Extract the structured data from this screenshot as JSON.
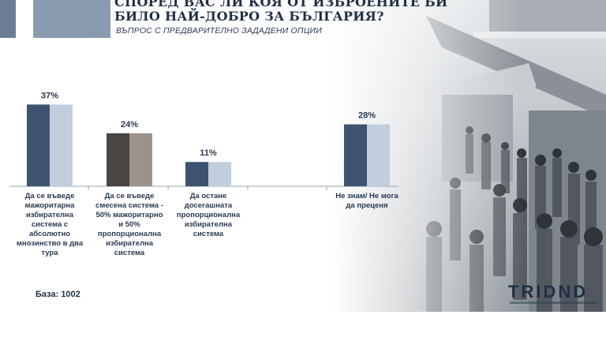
{
  "header": {
    "title_line1": "СПОРЕД ВАС ЛИ КОЯ ОТ ИЗБРОЕНИТЕ БИ",
    "title_line2": "БИЛО НАЙ-ДОБРО ЗА БЪЛГАРИЯ?",
    "subtitle": "ВЪПРОС С ПРЕДВАРИТЕЛНО ЗАДАДЕНИ ОПЦИИ"
  },
  "footer": {
    "base": "База: 1002",
    "logo": "TRIDND"
  },
  "colors": {
    "navy": "#3d5370",
    "navy_light": "#c2cedd",
    "dark": "#4a4543",
    "dark_light": "#9c948c"
  },
  "chart_data": {
    "type": "bar",
    "categories": [
      [
        "Да се въведе",
        "мажоритарна",
        "избирателна",
        "система с",
        "абсолютно",
        "мнозинство в два",
        "тура"
      ],
      [
        "Да се въведе",
        "смесена система -",
        "50% мажоритарно",
        "и 50%",
        "пропорционална",
        "избирателна",
        "система"
      ],
      [
        "Да остане",
        "досегашната",
        "пропорционална",
        "избирателна",
        "система"
      ],
      [
        "Не знам/ Не мога",
        "да преценя"
      ]
    ],
    "values": [
      37,
      24,
      11,
      28
    ],
    "labels": [
      "37%",
      "24%",
      "11%",
      "28%"
    ],
    "bar_colors": [
      [
        "#3d5370",
        "#c2cedd"
      ],
      [
        "#4a4543",
        "#9c948c"
      ],
      [
        "#3d5370",
        "#c2cedd"
      ],
      [
        "#3d5370",
        "#c2cedd"
      ]
    ],
    "ylim": [
      0,
      40
    ],
    "unit": "%"
  }
}
